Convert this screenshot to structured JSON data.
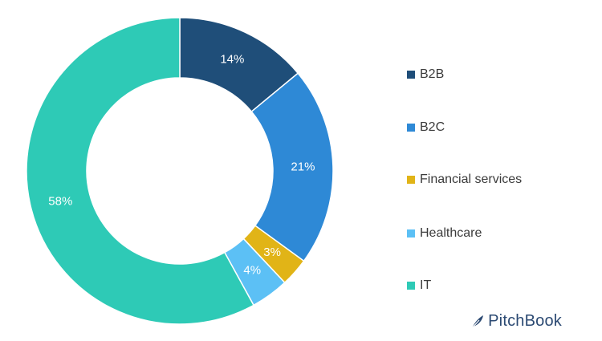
{
  "chart_data": {
    "type": "pie",
    "donut": true,
    "categories": [
      "B2B",
      "B2C",
      "Financial services",
      "Healthcare",
      "IT"
    ],
    "values": [
      14,
      21,
      3,
      4,
      58
    ],
    "value_labels": [
      "14%",
      "21%",
      "3%",
      "4%",
      "58%"
    ],
    "colors": [
      "#1f4e79",
      "#2e89d6",
      "#e1b417",
      "#5cc0f5",
      "#2ecab6"
    ],
    "legend_position": "right"
  },
  "brand": {
    "name": "PitchBook",
    "color": "#2c4a73"
  }
}
